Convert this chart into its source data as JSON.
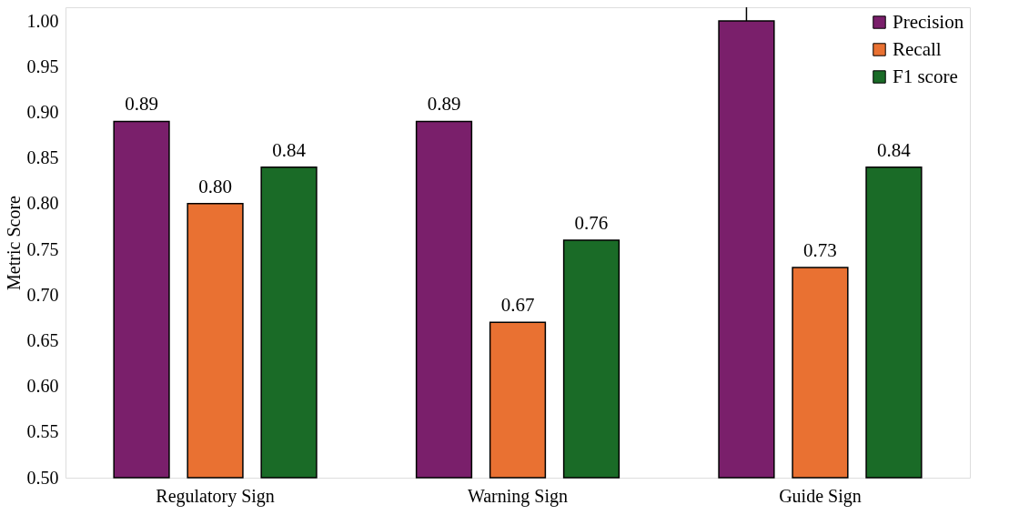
{
  "chart_data": {
    "type": "bar",
    "ylabel": "Metric Score",
    "categories": [
      "Regulatory Sign",
      "Warning Sign",
      "Guide Sign"
    ],
    "series": [
      {
        "name": "Precision",
        "color": "#7a1f6b",
        "values": [
          0.89,
          0.89,
          1.0
        ],
        "value_labels": [
          "0.89",
          "0.89",
          null
        ],
        "errors": [
          null,
          null,
          [
            1.0,
            1.015
          ]
        ]
      },
      {
        "name": "Recall",
        "color": "#e97132",
        "values": [
          0.8,
          0.67,
          0.73
        ],
        "value_labels": [
          "0.80",
          "0.67",
          "0.73"
        ]
      },
      {
        "name": "F1 score",
        "color": "#1a6b27",
        "values": [
          0.84,
          0.76,
          0.84
        ],
        "value_labels": [
          "0.84",
          "0.76",
          "0.84"
        ]
      }
    ],
    "ylim": [
      0.5,
      1.015
    ],
    "yticks": [
      {
        "value": 0.5,
        "label": "0.50"
      },
      0.55,
      {
        "value": 0.6,
        "label": "0.60"
      },
      0.65,
      {
        "value": 0.7,
        "label": "0.70"
      },
      0.75,
      {
        "value": 0.8,
        "label": "0.80"
      },
      0.85,
      {
        "value": 0.9,
        "label": "0.90"
      },
      0.95,
      {
        "value": 1.0,
        "label": "1.00"
      }
    ],
    "grid": false,
    "legend": "top right"
  }
}
